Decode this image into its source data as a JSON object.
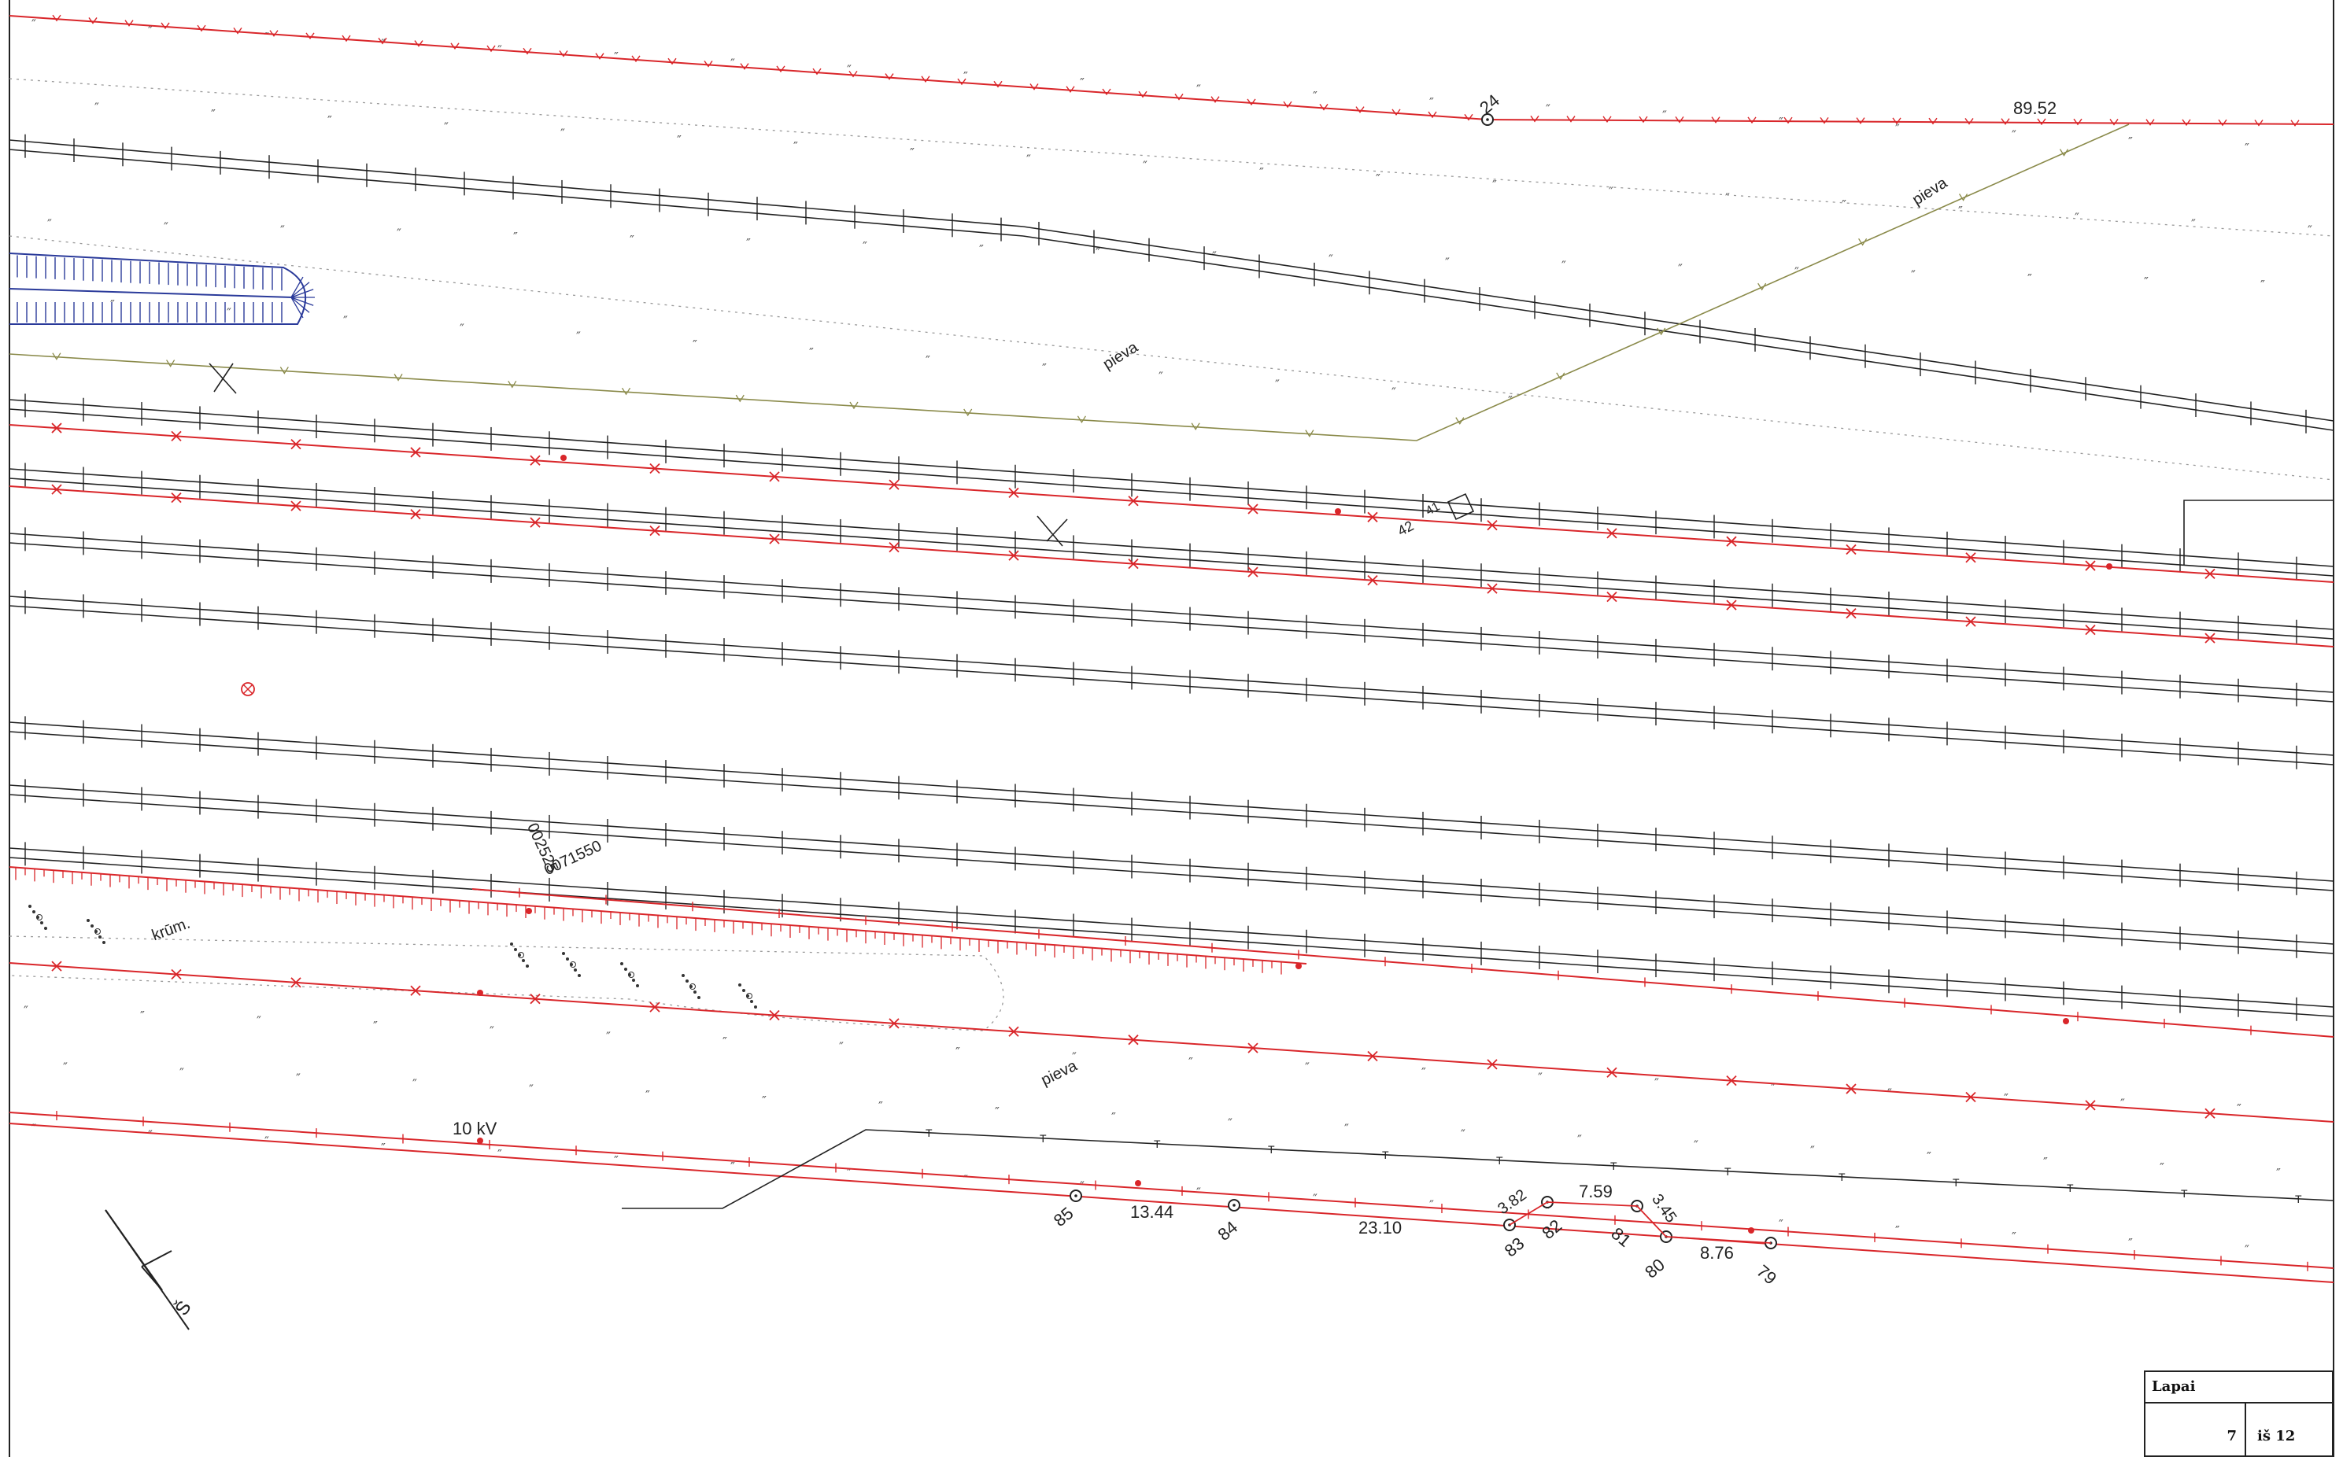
{
  "colors": {
    "red": "#d9262a",
    "black": "#222222",
    "olive": "#8a8a4a",
    "blue": "#2a3a9a",
    "grey": "#999999"
  },
  "labels": {
    "point_24": "24",
    "dist_8952": "89.52",
    "pieva_1": "pieva",
    "pieva_2": "pieva",
    "pieva_3": "pieva",
    "n42": "42",
    "n41": "41",
    "station_1": "0071550",
    "station_2": "002525",
    "krum": "krūm.",
    "kv": "10 kV",
    "point_85": "85",
    "dist_1344": "13.44",
    "point_84": "84",
    "dist_2310": "23.10",
    "dist_382": "3.82",
    "point_83": "83",
    "point_82": "82",
    "dist_759": "7.59",
    "point_81": "81",
    "dist_345": "3.45",
    "point_80": "80",
    "dist_876": "8.76",
    "point_79": "79",
    "north": "Š"
  },
  "title_block": {
    "heading": "Lapai",
    "page": "7",
    "of": "iš 12"
  }
}
